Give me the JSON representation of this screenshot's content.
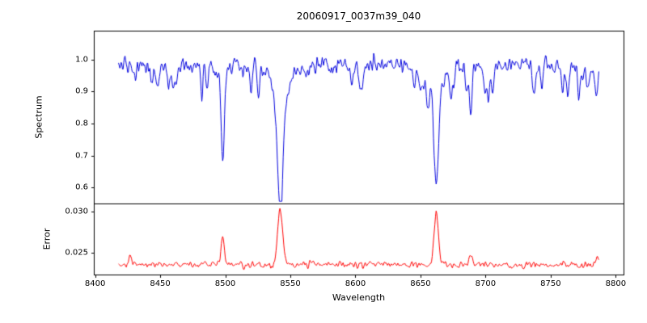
{
  "chart_data": {
    "type": "line",
    "title": "20060917_0037m39_040",
    "xlabel": "Wavelength",
    "x_range": [
      8399,
      8806
    ],
    "x_ticks": [
      8400,
      8450,
      8500,
      8550,
      8600,
      8650,
      8700,
      8750,
      8800
    ],
    "x_tick_labels": [
      "8400",
      "8450",
      "8500",
      "8550",
      "8600",
      "8650",
      "8700",
      "8750",
      "8800"
    ],
    "grid": false,
    "legend": "none",
    "sampling": {
      "x_start": 8418,
      "x_end": 8787,
      "dx": 0.5,
      "seed": 20060917
    },
    "subplots": [
      {
        "name": "spectrum",
        "ylabel": "Spectrum",
        "ylim": [
          0.55,
          1.09
        ],
        "y_ticks": [
          0.6,
          0.7,
          0.8,
          0.9,
          1.0
        ],
        "y_tick_labels": [
          "0.6",
          "0.7",
          "0.8",
          "0.9",
          "1.0"
        ],
        "line_color": "#0000dd",
        "continuum": 0.98,
        "noise_sigma": 0.02,
        "clamp": [
          0.557,
          1.082
        ],
        "absorption_lines": [
          {
            "center": 8498.0,
            "depth": 0.27,
            "sigma": 1.1,
            "wing_depth": 0.04,
            "wing_sigma": 3.5
          },
          {
            "center": 8542.1,
            "depth": 0.33,
            "sigma": 2.0,
            "wing_depth": 0.09,
            "wing_sigma": 7.0
          },
          {
            "center": 8662.1,
            "depth": 0.32,
            "sigma": 1.7,
            "wing_depth": 0.07,
            "wing_sigma": 5.5
          },
          {
            "center": 8688.6,
            "depth": 0.15,
            "sigma": 1.0,
            "wing_depth": 0.0,
            "wing_sigma": 1.0
          }
        ],
        "weak_line_count": 34,
        "weak_line_depth_range": [
          0.02,
          0.09
        ],
        "weak_line_sigma_range": [
          0.7,
          1.6
        ]
      },
      {
        "name": "error",
        "ylabel": "Error",
        "ylim": [
          0.0224,
          0.031
        ],
        "y_ticks": [
          0.025,
          0.03
        ],
        "y_tick_labels": [
          "0.025",
          "0.030"
        ],
        "line_color": "#ff0000",
        "baseline": 0.0236,
        "noise_sigma": 0.0003,
        "clamp": [
          0.0228,
          0.0306
        ],
        "peaks": [
          {
            "center": 8498.0,
            "amp": 0.0036,
            "sigma": 1.2
          },
          {
            "center": 8542.1,
            "amp": 0.0066,
            "sigma": 1.9
          },
          {
            "center": 8662.1,
            "amp": 0.0064,
            "sigma": 1.7
          },
          {
            "center": 8688.6,
            "amp": 0.0013,
            "sigma": 1.0
          },
          {
            "center": 8427.0,
            "amp": 0.0012,
            "sigma": 0.9
          },
          {
            "center": 8786.0,
            "amp": 0.0012,
            "sigma": 0.8
          }
        ]
      }
    ]
  }
}
